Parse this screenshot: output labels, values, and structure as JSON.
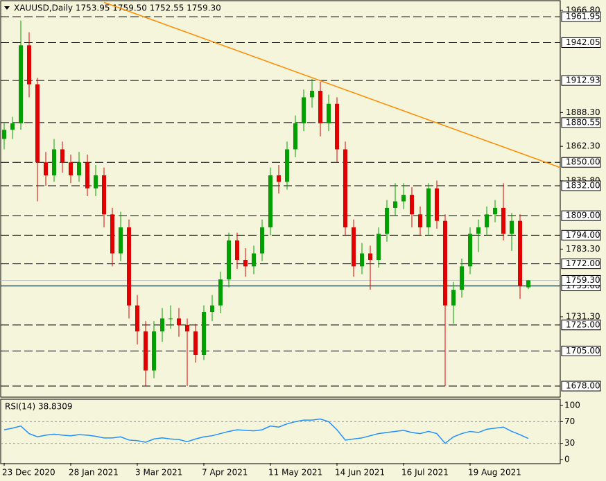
{
  "chart_data": {
    "type": "candlestick",
    "title": "XAUUSD,Daily  1753.95 1759.50 1752.55 1759.30",
    "categories": [
      "23 Dec 2020",
      null,
      null,
      null,
      null,
      null,
      null,
      null,
      "28 Jan 2021",
      null,
      null,
      null,
      null,
      null,
      null,
      null,
      "3 Mar 2021",
      null,
      null,
      null,
      null,
      null,
      null,
      null,
      "7 Apr 2021",
      null,
      null,
      null,
      null,
      null,
      null,
      null,
      "11 May 2021",
      null,
      null,
      null,
      null,
      null,
      null,
      null,
      "14 Jun 2021",
      null,
      null,
      null,
      null,
      null,
      null,
      null,
      "16 Jul 2021",
      null,
      null,
      null,
      null,
      null,
      null,
      null,
      "19 Aug 2021",
      null,
      null,
      null,
      null,
      null,
      null,
      null
    ],
    "candles": [
      [
        1868,
        1880,
        1860,
        1875
      ],
      [
        1875,
        1885,
        1868,
        1880
      ],
      [
        1880,
        1959,
        1875,
        1940
      ],
      [
        1940,
        1950,
        1900,
        1910
      ],
      [
        1910,
        1915,
        1820,
        1850
      ],
      [
        1850,
        1858,
        1832,
        1840
      ],
      [
        1840,
        1868,
        1835,
        1860
      ],
      [
        1860,
        1866,
        1842,
        1850
      ],
      [
        1850,
        1856,
        1834,
        1840
      ],
      [
        1840,
        1858,
        1835,
        1850
      ],
      [
        1850,
        1856,
        1824,
        1830
      ],
      [
        1830,
        1848,
        1824,
        1840
      ],
      [
        1840,
        1846,
        1800,
        1810
      ],
      [
        1810,
        1815,
        1770,
        1780
      ],
      [
        1780,
        1812,
        1774,
        1800
      ],
      [
        1800,
        1806,
        1730,
        1740
      ],
      [
        1740,
        1748,
        1710,
        1720
      ],
      [
        1720,
        1728,
        1678,
        1690
      ],
      [
        1690,
        1728,
        1684,
        1720
      ],
      [
        1720,
        1738,
        1712,
        1730
      ],
      [
        1730,
        1740,
        1722,
        1730
      ],
      [
        1730,
        1738,
        1716,
        1725
      ],
      [
        1725,
        1730,
        1678,
        1720
      ],
      [
        1720,
        1726,
        1696,
        1702
      ],
      [
        1702,
        1740,
        1698,
        1735
      ],
      [
        1735,
        1748,
        1728,
        1740
      ],
      [
        1740,
        1766,
        1734,
        1760
      ],
      [
        1760,
        1796,
        1754,
        1790
      ],
      [
        1790,
        1796,
        1768,
        1775
      ],
      [
        1775,
        1784,
        1762,
        1770
      ],
      [
        1770,
        1786,
        1764,
        1780
      ],
      [
        1780,
        1806,
        1774,
        1800
      ],
      [
        1800,
        1846,
        1794,
        1840
      ],
      [
        1840,
        1848,
        1826,
        1835
      ],
      [
        1835,
        1866,
        1829,
        1860
      ],
      [
        1860,
        1886,
        1854,
        1880
      ],
      [
        1880,
        1906,
        1874,
        1900
      ],
      [
        1900,
        1914,
        1892,
        1905
      ],
      [
        1905,
        1912,
        1870,
        1880
      ],
      [
        1880,
        1902,
        1874,
        1895
      ],
      [
        1895,
        1900,
        1850,
        1860
      ],
      [
        1860,
        1866,
        1794,
        1800
      ],
      [
        1800,
        1806,
        1762,
        1770
      ],
      [
        1770,
        1788,
        1764,
        1780
      ],
      [
        1780,
        1786,
        1752,
        1775
      ],
      [
        1775,
        1800,
        1769,
        1795
      ],
      [
        1795,
        1821,
        1789,
        1815
      ],
      [
        1815,
        1834,
        1809,
        1820
      ],
      [
        1820,
        1834,
        1814,
        1825
      ],
      [
        1825,
        1831,
        1800,
        1810
      ],
      [
        1810,
        1816,
        1794,
        1800
      ],
      [
        1800,
        1834,
        1794,
        1830
      ],
      [
        1830,
        1836,
        1799,
        1805
      ],
      [
        1805,
        1810,
        1678,
        1740
      ],
      [
        1740,
        1758,
        1726,
        1752
      ],
      [
        1752,
        1776,
        1746,
        1770
      ],
      [
        1770,
        1800,
        1764,
        1795
      ],
      [
        1795,
        1806,
        1781,
        1800
      ],
      [
        1800,
        1816,
        1794,
        1810
      ],
      [
        1810,
        1821,
        1804,
        1815
      ],
      [
        1815,
        1834,
        1790,
        1795
      ],
      [
        1795,
        1811,
        1782,
        1805
      ],
      [
        1805,
        1810,
        1745,
        1755
      ],
      [
        1753.95,
        1759.5,
        1752.55,
        1759.3
      ]
    ],
    "up_color": "#00a000",
    "down_color": "#e00000",
    "ylim": [
      1669.5,
      1974.8
    ],
    "yticks": [
      {
        "value": 1966.8,
        "label": "1966.80"
      },
      {
        "value": 1888.3,
        "label": "1888.30"
      },
      {
        "value": 1862.3,
        "label": "1862.30"
      },
      {
        "value": 1835.8,
        "label": "1835.80"
      },
      {
        "value": 1783.3,
        "label": "1783.30"
      },
      {
        "value": 1731.3,
        "label": "1731.30"
      }
    ],
    "levels": [
      {
        "value": 1961.95,
        "label": "1961.95"
      },
      {
        "value": 1942.05,
        "label": "1942.05"
      },
      {
        "value": 1912.93,
        "label": "1912.93"
      },
      {
        "value": 1880.55,
        "label": "1880.55"
      },
      {
        "value": 1850,
        "label": "1850.00"
      },
      {
        "value": 1832,
        "label": "1832.00"
      },
      {
        "value": 1809,
        "label": "1809.00"
      },
      {
        "value": 1794,
        "label": "1794.00"
      },
      {
        "value": 1772,
        "label": "1772.00"
      },
      {
        "value": 1755,
        "label": "1755.00"
      },
      {
        "value": 1725,
        "label": "1725.00"
      },
      {
        "value": 1705,
        "label": "1705.00"
      },
      {
        "value": 1678,
        "label": "1678.00"
      }
    ],
    "solid_level": 1755,
    "current_price": {
      "value": 1759.3,
      "label": "1759.30"
    },
    "trendline": [
      1973,
      1846
    ],
    "trendline_color": "#ff8c00",
    "rsi": {
      "title": "RSI(14) 38.8309",
      "color": "#1e90ff",
      "values": [
        55,
        58,
        62,
        48,
        42,
        45,
        47,
        45,
        44,
        46,
        45,
        43,
        40,
        40,
        42,
        36,
        35,
        32,
        38,
        40,
        38,
        37,
        33,
        38,
        42,
        44,
        48,
        52,
        55,
        54,
        53,
        55,
        62,
        60,
        66,
        70,
        73,
        73,
        75,
        70,
        55,
        36,
        38,
        40,
        44,
        48,
        50,
        52,
        54,
        50,
        48,
        52,
        48,
        30,
        42,
        48,
        52,
        50,
        56,
        58,
        60,
        52,
        46,
        38.83
      ],
      "ylim": [
        -6.4,
        110.3
      ],
      "yticks": [
        100,
        70,
        30,
        0
      ],
      "levels": [
        70,
        30
      ]
    }
  }
}
